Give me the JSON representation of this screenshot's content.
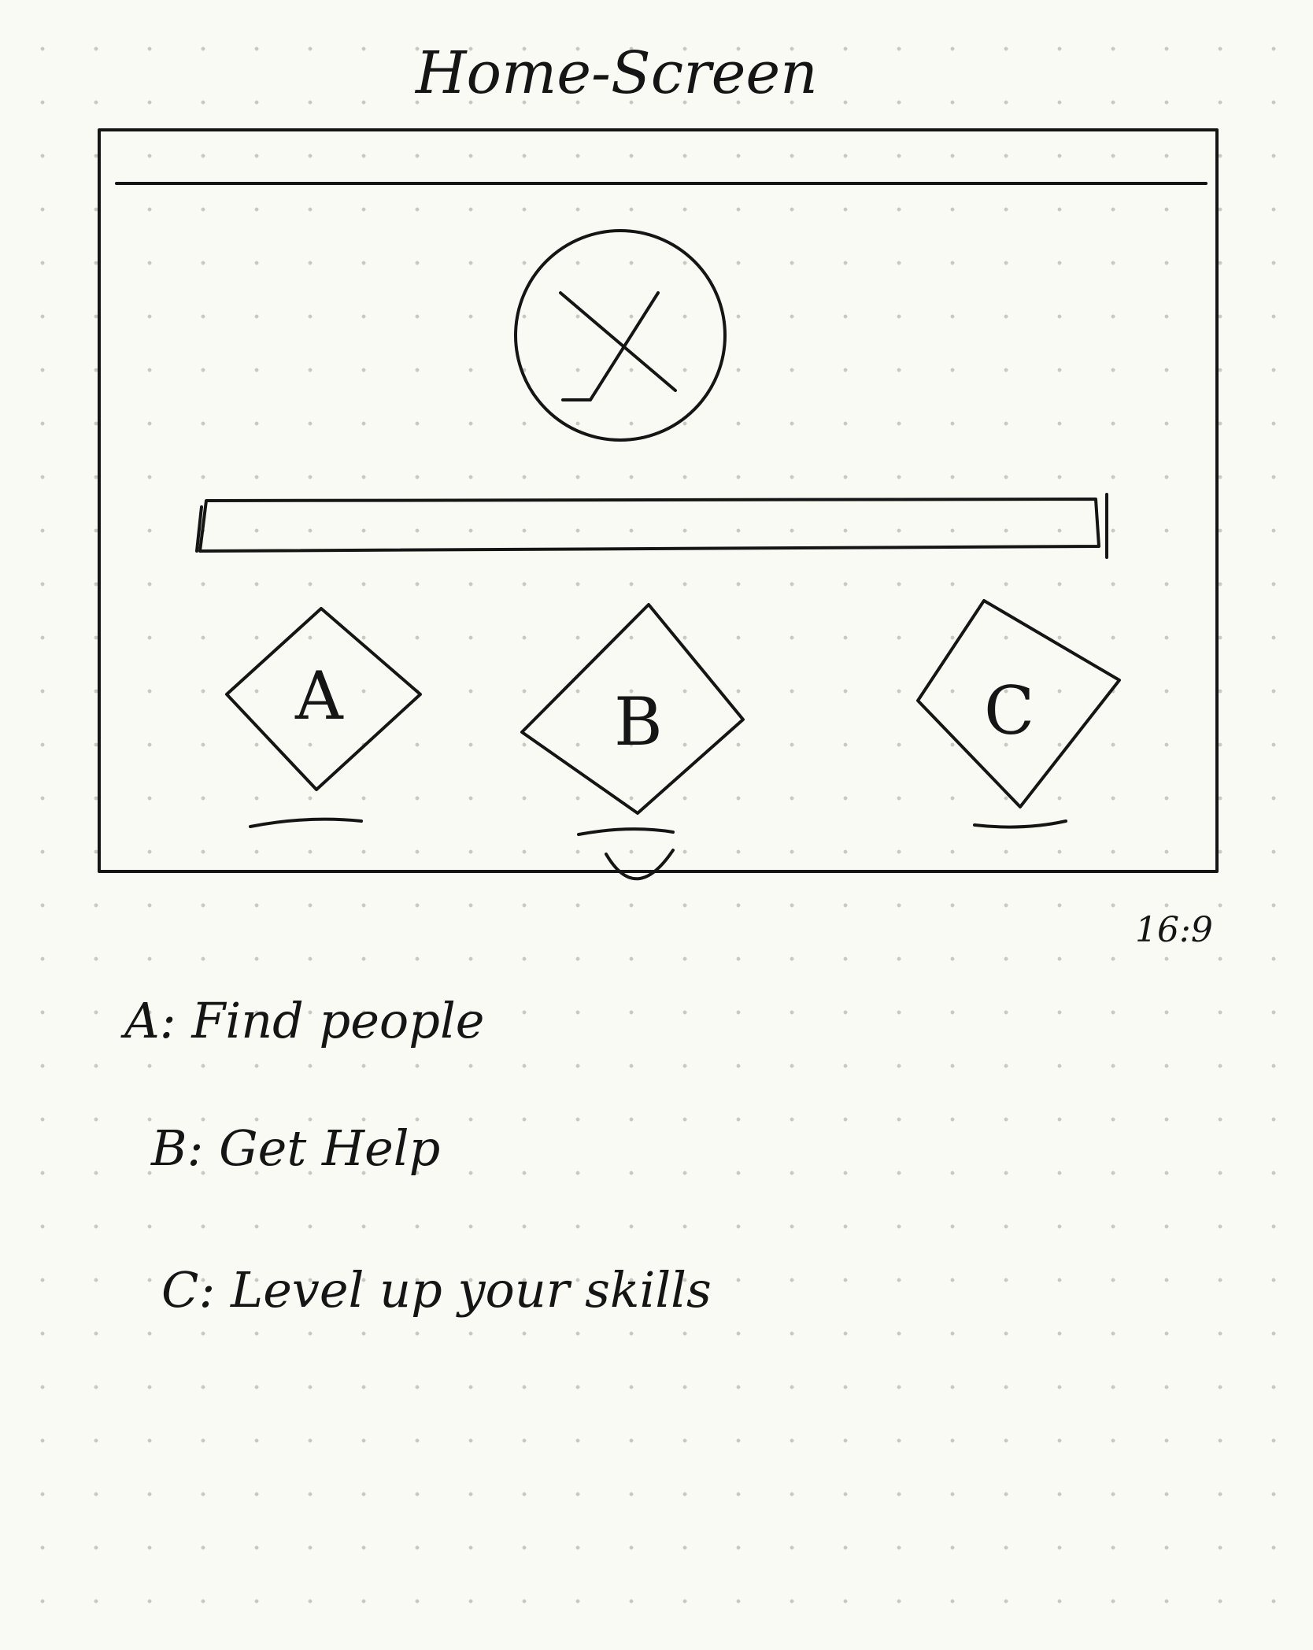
{
  "title": "Home-Screen",
  "aspect_ratio": "16:9",
  "logo_glyph": "X",
  "options": [
    {
      "letter": "A"
    },
    {
      "letter": "B"
    },
    {
      "letter": "C"
    }
  ],
  "notes": [
    "A: Find people",
    "B: Get Help",
    "C: Level up your skills"
  ]
}
